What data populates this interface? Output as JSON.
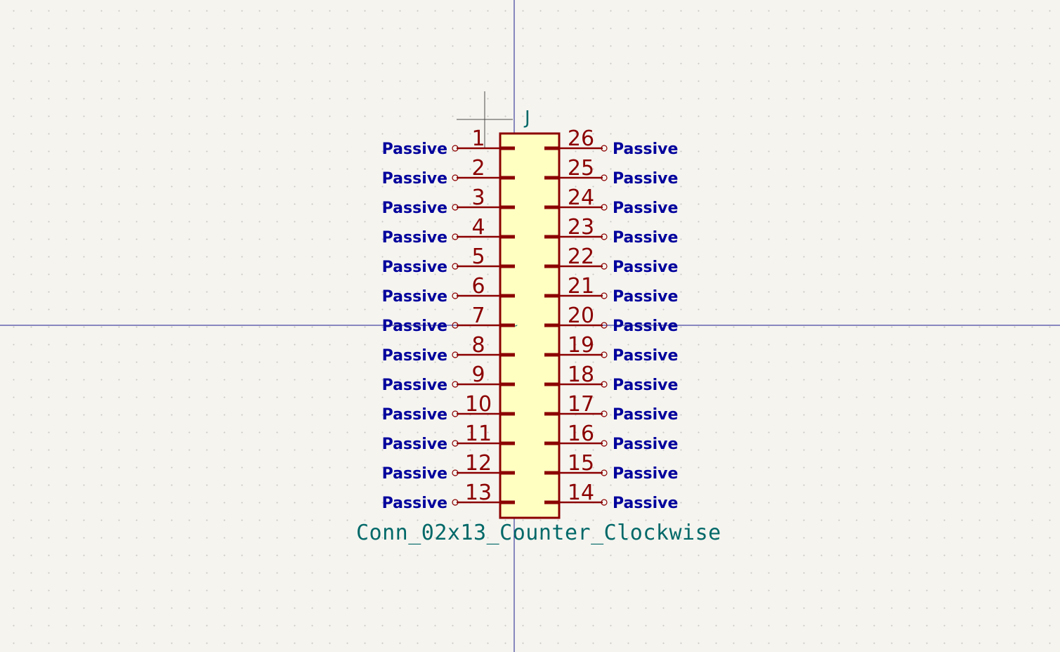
{
  "symbol": {
    "reference": "J",
    "value": "Conn_02x13_Counter_Clockwise"
  },
  "pins_left": [
    {
      "number": "1",
      "type": "Passive"
    },
    {
      "number": "2",
      "type": "Passive"
    },
    {
      "number": "3",
      "type": "Passive"
    },
    {
      "number": "4",
      "type": "Passive"
    },
    {
      "number": "5",
      "type": "Passive"
    },
    {
      "number": "6",
      "type": "Passive"
    },
    {
      "number": "7",
      "type": "Passive"
    },
    {
      "number": "8",
      "type": "Passive"
    },
    {
      "number": "9",
      "type": "Passive"
    },
    {
      "number": "10",
      "type": "Passive"
    },
    {
      "number": "11",
      "type": "Passive"
    },
    {
      "number": "12",
      "type": "Passive"
    },
    {
      "number": "13",
      "type": "Passive"
    }
  ],
  "pins_right": [
    {
      "number": "26",
      "type": "Passive"
    },
    {
      "number": "25",
      "type": "Passive"
    },
    {
      "number": "24",
      "type": "Passive"
    },
    {
      "number": "23",
      "type": "Passive"
    },
    {
      "number": "22",
      "type": "Passive"
    },
    {
      "number": "21",
      "type": "Passive"
    },
    {
      "number": "20",
      "type": "Passive"
    },
    {
      "number": "19",
      "type": "Passive"
    },
    {
      "number": "18",
      "type": "Passive"
    },
    {
      "number": "17",
      "type": "Passive"
    },
    {
      "number": "16",
      "type": "Passive"
    },
    {
      "number": "15",
      "type": "Passive"
    },
    {
      "number": "14",
      "type": "Passive"
    }
  ],
  "colors": {
    "background": "#f5f4ef",
    "axis": "#1a1a8c",
    "body_stroke": "#8b0000",
    "body_fill": "#ffffc2",
    "pin_number": "#8b0000",
    "pin_type": "#00009c",
    "field_text": "#006868",
    "cursor": "#4a4a4a"
  }
}
